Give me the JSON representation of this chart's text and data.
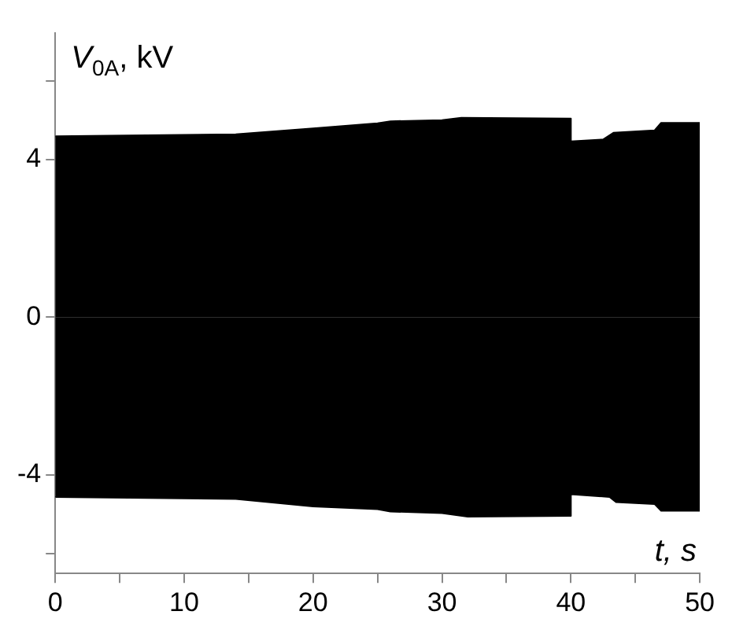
{
  "chart_data": {
    "type": "area",
    "xlabel": "t, s",
    "ylabel": "V$_{0A}$, kV",
    "series": [
      {
        "color": "#000000",
        "x": [
          0,
          14,
          20,
          25,
          26,
          30,
          31.5,
          40,
          40,
          42.5,
          43.3,
          46.5,
          47,
          50
        ],
        "values": [
          4.59,
          4.64,
          4.79,
          4.92,
          4.97,
          5.0,
          5.06,
          5.04,
          4.46,
          4.51,
          4.68,
          4.74,
          4.93,
          4.93
        ]
      },
      {
        "color": "#000000",
        "x": [
          0,
          14,
          20,
          25,
          26,
          30,
          32,
          40,
          40,
          43,
          43.5,
          46.5,
          47,
          50
        ],
        "values": [
          -4.56,
          -4.61,
          -4.8,
          -4.87,
          -4.93,
          -4.97,
          -5.06,
          -5.04,
          -4.49,
          -4.56,
          -4.69,
          -4.74,
          -4.91,
          -4.91
        ]
      }
    ],
    "xlim": [
      0,
      50
    ],
    "xticks": [
      0,
      {
        "value": 5,
        "label": null
      },
      10,
      {
        "value": 15,
        "label": null
      },
      20,
      {
        "value": 25,
        "label": null
      },
      30,
      {
        "value": 35,
        "label": null
      },
      40,
      {
        "value": 45,
        "label": null
      },
      50
    ],
    "ylim": [
      -6.5,
      7.2
    ],
    "yticks": [
      {
        "value": -6,
        "label": null
      },
      -4,
      0,
      4,
      {
        "value": 6,
        "label": null
      }
    ],
    "grid": false,
    "legend": false
  }
}
